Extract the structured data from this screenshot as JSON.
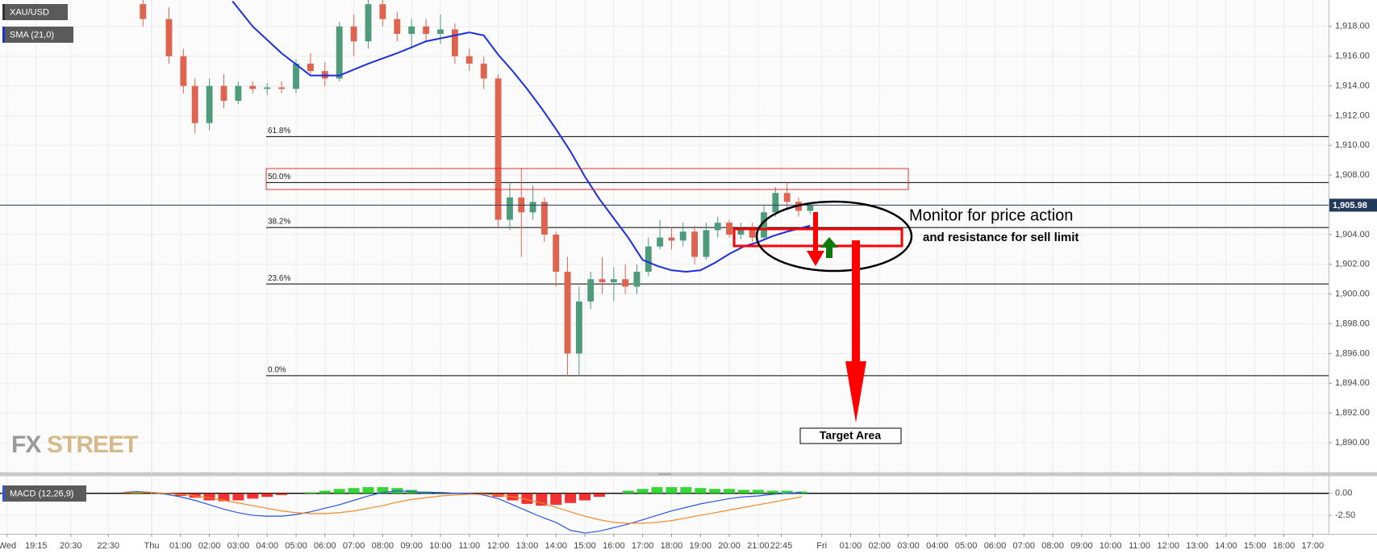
{
  "chart_data": [
    {
      "type": "candlestick",
      "title": "XAU/USD",
      "x": [
        -0.3,
        0.6,
        1.1,
        1.5,
        2.0,
        2.5,
        3.0,
        3.5,
        4.0,
        4.5,
        5.0,
        5.5,
        6.0,
        6.5,
        7.0,
        7.5,
        8.0,
        8.5,
        9.0,
        9.5,
        10.0,
        10.5,
        11.0,
        11.5,
        12.0,
        12.4,
        12.8,
        13.2,
        13.6,
        14.0,
        14.4,
        14.8,
        15.2,
        15.6,
        16.0,
        16.4,
        16.8,
        17.2,
        17.6,
        18.0,
        18.4,
        18.8,
        19.2,
        19.6,
        20.0,
        20.4,
        20.8,
        21.2,
        21.6,
        22.0,
        22.4,
        22.8
      ],
      "open": [
        1919.5,
        1918.5,
        1916,
        1914,
        1911.5,
        1914,
        1913,
        1914,
        1913.8,
        1913.9,
        1913.8,
        1915.5,
        1915,
        1914.5,
        1918,
        1917,
        1919.5,
        1918.5,
        1917.5,
        1918,
        1917.5,
        1917.8,
        1916,
        1915.5,
        1914.5,
        1905,
        1906.5,
        1905.5,
        1906.2,
        1904,
        1901.5,
        1896,
        1899.5,
        1901,
        1900.8,
        1901,
        1900.5,
        1901.5,
        1903.2,
        1903.8,
        1903.6,
        1904.2,
        1902.5,
        1904.3,
        1904.8,
        1904,
        1904.3,
        1903.8,
        1905.5,
        1906.8,
        1906.2,
        1905.6
      ],
      "high": [
        1919.8,
        1919.3,
        1916.5,
        1914.5,
        1914.5,
        1914.8,
        1914.3,
        1914.3,
        1914.2,
        1914.3,
        1915.8,
        1916.2,
        1915.6,
        1918.3,
        1918.8,
        1919.8,
        1919.8,
        1919,
        1918.5,
        1918.5,
        1918.8,
        1918.2,
        1916.5,
        1916,
        1914.8,
        1907.5,
        1908.5,
        1907.3,
        1906.5,
        1904.2,
        1902.5,
        1900.5,
        1901.5,
        1902.5,
        1901.8,
        1902,
        1902,
        1903.8,
        1905,
        1904.5,
        1904.8,
        1904.6,
        1904.8,
        1905.2,
        1905,
        1904.8,
        1904.8,
        1906,
        1907.2,
        1907.5,
        1906.5,
        1906.2
      ],
      "low": [
        1918,
        1915.5,
        1913.5,
        1910.8,
        1911,
        1912.5,
        1912.8,
        1913.5,
        1913.4,
        1913.5,
        1913.5,
        1914.8,
        1914,
        1914.3,
        1916,
        1916.5,
        1918,
        1917,
        1916.5,
        1917,
        1916.8,
        1915.5,
        1915,
        1913.8,
        1904.5,
        1904.3,
        1902.5,
        1905,
        1903.5,
        1900.5,
        1894.5,
        1894.5,
        1899,
        1900,
        1899.5,
        1900,
        1900,
        1901.2,
        1903,
        1903,
        1903.2,
        1902,
        1902.3,
        1903.8,
        1903.8,
        1903.7,
        1903.5,
        1903.6,
        1905.2,
        1905.8,
        1905.2,
        1905.4
      ],
      "close": [
        1918.5,
        1916,
        1914,
        1911.5,
        1914,
        1913,
        1914,
        1913.8,
        1913.9,
        1913.8,
        1915.5,
        1915,
        1914.5,
        1918,
        1917,
        1919.5,
        1918.5,
        1917.5,
        1918,
        1917.5,
        1917.8,
        1916,
        1915.5,
        1914.5,
        1905,
        1906.5,
        1905.5,
        1906.2,
        1904,
        1901.5,
        1896,
        1899.5,
        1901,
        1900.8,
        1901,
        1900.5,
        1901.5,
        1903.2,
        1903.8,
        1903.6,
        1904.2,
        1902.5,
        1904.3,
        1904.8,
        1904,
        1904.3,
        1903.8,
        1905.5,
        1906.8,
        1906.2,
        1905.6,
        1905.98
      ],
      "color_up": "#4e9c7c",
      "color_down": "#df6450",
      "sma": {
        "name": "SMA (21,0)",
        "color": "#1b2fe0",
        "x": [
          2.8,
          3.5,
          4.5,
          5.5,
          6.5,
          7.5,
          8.5,
          9.5,
          10.5,
          11.0,
          11.5,
          12,
          12.5,
          13,
          13.5,
          14,
          14.5,
          15,
          15.5,
          16,
          16.5,
          17,
          17.5,
          18,
          18.5,
          19,
          19.5,
          20,
          20.5,
          21,
          21.5,
          22,
          22.8
        ],
        "values": [
          1919.7,
          1918,
          1916.2,
          1914.7,
          1914.7,
          1915.5,
          1916.2,
          1917,
          1917.4,
          1917.6,
          1917.4,
          1916.1,
          1915,
          1913.8,
          1912.5,
          1911.1,
          1909.6,
          1907.9,
          1906.4,
          1905.1,
          1903.8,
          1902.3,
          1901.9,
          1901.6,
          1901.5,
          1901.6,
          1902.1,
          1902.7,
          1903.2,
          1903.5,
          1903.9,
          1904.2,
          1904.6
        ]
      },
      "last_price": {
        "value": 1905.98,
        "label": "1,905.98"
      },
      "fib_levels": [
        {
          "label": "61.8%",
          "value": 1910.59
        },
        {
          "label": "50.0%",
          "value": 1907.5
        },
        {
          "label": "38.2%",
          "value": 1904.48
        },
        {
          "label": "23.6%",
          "value": 1900.68
        },
        {
          "label": "0.0%",
          "value": 1894.51
        }
      ],
      "annotations": [
        "Monitor for price action",
        "and resistance for sell limit",
        "Target Area"
      ],
      "watermark": [
        "FX",
        "STREET"
      ],
      "xlim": [
        -5.25,
        40.75
      ],
      "xticks": [
        {
          "value": -5,
          "label": "Wed"
        },
        {
          "value": -4,
          "label": "19:15"
        },
        {
          "value": -2.8,
          "label": "20:30"
        },
        {
          "value": -1.5,
          "label": "22:30"
        },
        {
          "value": 0,
          "label": "Thu"
        },
        {
          "value": 1,
          "label": "01:00"
        },
        {
          "value": 2,
          "label": "02:00"
        },
        {
          "value": 3,
          "label": "03:00"
        },
        {
          "value": 4,
          "label": "04:00"
        },
        {
          "value": 5,
          "label": "05:00"
        },
        {
          "value": 6,
          "label": "06:00"
        },
        {
          "value": 7,
          "label": "07:00"
        },
        {
          "value": 8,
          "label": "08:00"
        },
        {
          "value": 9,
          "label": "09:00"
        },
        {
          "value": 10,
          "label": "10:00"
        },
        {
          "value": 11,
          "label": "11:00"
        },
        {
          "value": 12,
          "label": "12:00"
        },
        {
          "value": 13,
          "label": "13:00"
        },
        {
          "value": 14,
          "label": "14:00"
        },
        {
          "value": 15,
          "label": "15:00"
        },
        {
          "value": 16,
          "label": "16:00"
        },
        {
          "value": 17,
          "label": "17:00"
        },
        {
          "value": 18,
          "label": "18:00"
        },
        {
          "value": 19,
          "label": "19:00"
        },
        {
          "value": 20,
          "label": "20:00"
        },
        {
          "value": 21,
          "label": "21:00"
        },
        {
          "value": 21.8,
          "label": "22:45"
        },
        {
          "value": 23.2,
          "label": "Fri"
        },
        {
          "value": 24.2,
          "label": "01:00"
        },
        {
          "value": 25.2,
          "label": "02:00"
        },
        {
          "value": 26.2,
          "label": "03:00"
        },
        {
          "value": 27.2,
          "label": "04:00"
        },
        {
          "value": 28.2,
          "label": "05:00"
        },
        {
          "value": 29.2,
          "label": "06:00"
        },
        {
          "value": 30.2,
          "label": "07:00"
        },
        {
          "value": 31.2,
          "label": "08:00"
        },
        {
          "value": 32.2,
          "label": "09:00"
        },
        {
          "value": 33.2,
          "label": "10:00"
        },
        {
          "value": 34.2,
          "label": "11:00"
        },
        {
          "value": 35.2,
          "label": "12:00"
        },
        {
          "value": 36.2,
          "label": "13:00"
        },
        {
          "value": 37.2,
          "label": "14:00"
        },
        {
          "value": 38.2,
          "label": "15:00"
        },
        {
          "value": 39.2,
          "label": "16:00"
        },
        {
          "value": 40.2,
          "label": "17:00"
        }
      ],
      "ylim": [
        1888.05,
        1919.78
      ],
      "yticks": [
        {
          "value": 1890,
          "label": "1,890.00"
        },
        {
          "value": 1892,
          "label": "1,892.00"
        },
        {
          "value": 1894,
          "label": "1,894.00"
        },
        {
          "value": 1896,
          "label": "1,896.00"
        },
        {
          "value": 1898,
          "label": "1,898.00"
        },
        {
          "value": 1900,
          "label": "1,900.00"
        },
        {
          "value": 1902,
          "label": "1,902.00"
        },
        {
          "value": 1904,
          "label": "1,904.00"
        },
        {
          "value": 1906,
          "label": "1,906.00"
        },
        {
          "value": 1908,
          "label": "1,908.00"
        },
        {
          "value": 1910,
          "label": "1,910.00"
        },
        {
          "value": 1912,
          "label": "1,912.00"
        },
        {
          "value": 1914,
          "label": "1,914.00"
        },
        {
          "value": 1916,
          "label": "1,916.00"
        },
        {
          "value": 1918,
          "label": "1,918.00"
        }
      ],
      "grid": true
    },
    {
      "type": "macd",
      "title": "MACD (12,26,9)",
      "x": [
        -1,
        -0.5,
        0,
        0.5,
        1,
        1.5,
        2,
        2.5,
        3,
        3.5,
        4,
        4.5,
        5,
        5.5,
        6,
        6.5,
        7,
        7.5,
        8,
        8.5,
        9,
        9.5,
        10,
        10.5,
        11,
        11.5,
        12,
        12.5,
        13,
        13.5,
        14,
        14.5,
        15,
        15.5,
        16,
        16.5,
        17,
        17.5,
        18,
        18.5,
        19,
        19.5,
        20,
        20.5,
        21,
        21.5,
        22,
        22.5
      ],
      "histogram": [
        0,
        0.1,
        0,
        -0.1,
        -0.3,
        -0.5,
        -0.8,
        -0.9,
        -0.8,
        -0.6,
        -0.4,
        -0.2,
        0,
        0.1,
        0.3,
        0.5,
        0.6,
        0.7,
        0.7,
        0.6,
        0.4,
        0.2,
        0.1,
        0,
        0,
        -0.1,
        -0.4,
        -0.8,
        -1.2,
        -1.4,
        -1.3,
        -1.1,
        -0.8,
        -0.4,
        0,
        0.3,
        0.5,
        0.7,
        0.7,
        0.7,
        0.6,
        0.5,
        0.5,
        0.4,
        0.4,
        0.3,
        0.3,
        0.2
      ],
      "macd": [
        0.1,
        0.2,
        0.1,
        -0.1,
        -0.4,
        -0.8,
        -1.3,
        -1.8,
        -2.2,
        -2.5,
        -2.6,
        -2.6,
        -2.4,
        -2.1,
        -1.7,
        -1.3,
        -0.8,
        -0.3,
        0.1,
        0.3,
        0.2,
        0.1,
        0.1,
        0.0,
        0.0,
        -0.2,
        -0.6,
        -1.3,
        -2.0,
        -2.7,
        -3.3,
        -4.2,
        -4.5,
        -4.3,
        -3.9,
        -3.5,
        -3.0,
        -2.5,
        -2.0,
        -1.6,
        -1.2,
        -0.9,
        -0.6,
        -0.4,
        -0.3,
        -0.1,
        0.0,
        0.1
      ],
      "signal": [
        0.1,
        0.1,
        0.1,
        0.0,
        -0.1,
        -0.3,
        -0.5,
        -0.8,
        -1.1,
        -1.4,
        -1.7,
        -2.0,
        -2.2,
        -2.3,
        -2.3,
        -2.2,
        -2.0,
        -1.7,
        -1.4,
        -1.0,
        -0.7,
        -0.5,
        -0.3,
        -0.2,
        -0.1,
        -0.1,
        -0.2,
        -0.4,
        -0.7,
        -1.1,
        -1.6,
        -2.1,
        -2.6,
        -3.0,
        -3.3,
        -3.4,
        -3.4,
        -3.3,
        -3.1,
        -2.8,
        -2.5,
        -2.2,
        -1.9,
        -1.6,
        -1.3,
        -1.0,
        -0.7,
        -0.4
      ],
      "color_up": "#1ed31e",
      "color_down": "#ee1c1c",
      "macd_color": "#2a55e8",
      "signal_color": "#f08a24",
      "ylim": [
        -4.6,
        1.9
      ],
      "yticks": [
        {
          "value": 0,
          "label": "0.00"
        },
        {
          "value": -2.5,
          "label": "-2.50"
        }
      ]
    }
  ]
}
